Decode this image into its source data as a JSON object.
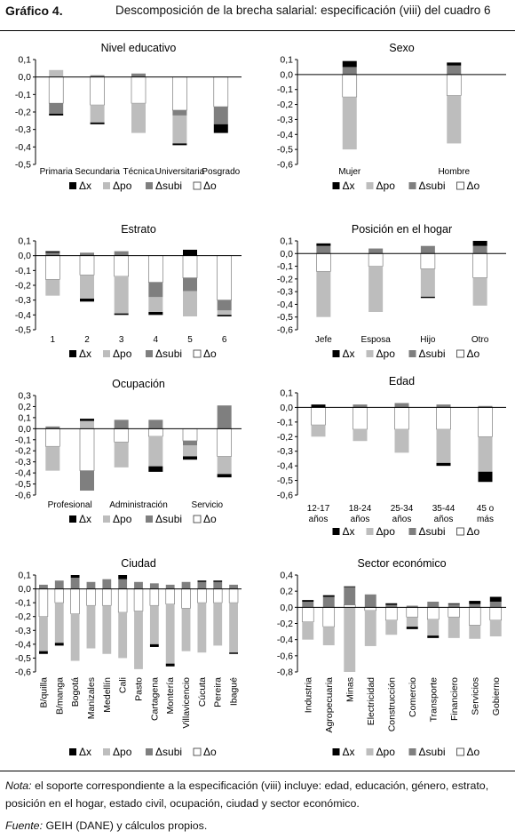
{
  "figure_label": "Gráfico 4.",
  "figure_title": "Descomposición de la brecha salarial: especificación (viii) del cuadro 6",
  "legend_labels": [
    "Δx",
    "Δpo",
    "Δsubi",
    "Δo"
  ],
  "colors": {
    "dx": "#000000",
    "dpo": "#bdbdbd",
    "dsubi": "#7f7f7f",
    "do": "#ffffff"
  },
  "note": {
    "lead": "Nota:",
    "text": " el soporte correspondiente a la especificación (viii) incluye: edad, educación, género, estrato, posición en el hogar, estado civil, ocupación, ciudad y sector económico."
  },
  "source": {
    "lead": "Fuente:",
    "text": " GEIH (DANE) y cálculos propios."
  },
  "chart_data": [
    {
      "type": "bar",
      "title": "Nivel educativo",
      "categories": [
        "Primaria",
        "Secundaria",
        "Técnica",
        "Universitaria",
        "Posgrado"
      ],
      "ylim": [
        -0.5,
        0.1
      ],
      "yticks": [
        -0.5,
        -0.4,
        -0.3,
        -0.2,
        -0.1,
        0.0,
        0.1
      ],
      "series": [
        {
          "name": "Δx",
          "values": [
            -0.01,
            -0.01,
            0.0,
            -0.01,
            -0.05
          ]
        },
        {
          "name": "Δpo",
          "values": [
            0.04,
            -0.1,
            -0.17,
            -0.16,
            -0.0
          ]
        },
        {
          "name": "Δsubi",
          "values": [
            -0.06,
            0.01,
            0.02,
            -0.03,
            -0.1
          ]
        },
        {
          "name": "Δo",
          "values": [
            -0.15,
            -0.16,
            -0.15,
            -0.19,
            -0.17
          ]
        }
      ]
    },
    {
      "type": "bar",
      "title": "Sexo",
      "categories": [
        "Mujer",
        "Hombre"
      ],
      "ylim": [
        -0.6,
        0.1
      ],
      "yticks": [
        -0.6,
        -0.5,
        -0.4,
        -0.3,
        -0.2,
        -0.1,
        0.0,
        0.1
      ],
      "series": [
        {
          "name": "Δx",
          "values": [
            0.04,
            0.02
          ]
        },
        {
          "name": "Δpo",
          "values": [
            -0.35,
            -0.32
          ]
        },
        {
          "name": "Δsubi",
          "values": [
            0.05,
            0.06
          ]
        },
        {
          "name": "Δo",
          "values": [
            -0.15,
            -0.14
          ]
        }
      ]
    },
    {
      "type": "bar",
      "title": "Estrato",
      "categories": [
        "1",
        "2",
        "3",
        "4",
        "5",
        "6"
      ],
      "ylim": [
        -0.5,
        0.1
      ],
      "yticks": [
        -0.5,
        -0.4,
        -0.3,
        -0.2,
        -0.1,
        0.0,
        0.1
      ],
      "series": [
        {
          "name": "Δx",
          "values": [
            0.01,
            -0.02,
            -0.01,
            -0.02,
            0.04,
            -0.01
          ]
        },
        {
          "name": "Δpo",
          "values": [
            -0.11,
            -0.16,
            -0.25,
            -0.1,
            -0.17,
            -0.03
          ]
        },
        {
          "name": "Δsubi",
          "values": [
            0.02,
            0.02,
            0.03,
            -0.1,
            -0.09,
            -0.07
          ]
        },
        {
          "name": "Δo",
          "values": [
            -0.16,
            -0.13,
            -0.14,
            -0.18,
            -0.15,
            -0.3
          ]
        }
      ]
    },
    {
      "type": "bar",
      "title": "Posición en el hogar",
      "categories": [
        "Jefe",
        "Esposa",
        "Hijo",
        "Otro"
      ],
      "ylim": [
        -0.6,
        0.1
      ],
      "yticks": [
        -0.6,
        -0.5,
        -0.4,
        -0.3,
        -0.2,
        -0.1,
        0.0,
        0.1
      ],
      "series": [
        {
          "name": "Δx",
          "values": [
            0.02,
            0.0,
            -0.01,
            0.04
          ]
        },
        {
          "name": "Δpo",
          "values": [
            -0.36,
            -0.36,
            -0.22,
            -0.22
          ]
        },
        {
          "name": "Δsubi",
          "values": [
            0.06,
            0.04,
            0.06,
            0.06
          ]
        },
        {
          "name": "Δo",
          "values": [
            -0.14,
            -0.1,
            -0.12,
            -0.19
          ]
        }
      ]
    },
    {
      "type": "bar",
      "title": "Ocupación",
      "categories": [
        "Profesional",
        "",
        "Administración",
        "",
        "Servicio",
        ""
      ],
      "ylim": [
        -0.6,
        0.3
      ],
      "yticks": [
        -0.6,
        -0.5,
        -0.4,
        -0.3,
        -0.2,
        -0.1,
        0.0,
        0.1,
        0.2,
        0.3
      ],
      "series": [
        {
          "name": "Δx",
          "values": [
            0.0,
            0.02,
            0.0,
            -0.05,
            -0.03,
            -0.03
          ]
        },
        {
          "name": "Δpo",
          "values": [
            -0.22,
            0.07,
            -0.23,
            -0.27,
            -0.1,
            -0.16
          ]
        },
        {
          "name": "Δsubi",
          "values": [
            0.02,
            -0.18,
            0.08,
            0.08,
            -0.04,
            0.21
          ]
        },
        {
          "name": "Δo",
          "values": [
            -0.16,
            -0.38,
            -0.12,
            -0.07,
            -0.11,
            -0.25
          ]
        }
      ]
    },
    {
      "type": "bar",
      "title": "Edad",
      "categories": [
        "12-17 años",
        "18-24 años",
        "25-34 años",
        "35-44 años",
        "45 o más"
      ],
      "ylim": [
        -0.6,
        0.1
      ],
      "yticks": [
        -0.6,
        -0.5,
        -0.4,
        -0.3,
        -0.2,
        -0.1,
        0.0,
        0.1
      ],
      "series": [
        {
          "name": "Δx",
          "values": [
            0.02,
            0.0,
            0.0,
            -0.02,
            -0.07
          ]
        },
        {
          "name": "Δpo",
          "values": [
            -0.08,
            -0.08,
            -0.16,
            -0.23,
            -0.24
          ]
        },
        {
          "name": "Δsubi",
          "values": [
            0.0,
            0.02,
            0.03,
            0.02,
            0.01
          ]
        },
        {
          "name": "Δo",
          "values": [
            -0.12,
            -0.15,
            -0.15,
            -0.15,
            -0.2
          ]
        }
      ]
    },
    {
      "type": "bar",
      "title": "Ciudad",
      "categories": [
        "B/quilla",
        "B/manga",
        "Bogotá",
        "Manizales",
        "Medellín",
        "Cali",
        "Pasto",
        "Cartagena",
        "Montería",
        "Villavicencio",
        "Cúcuta",
        "Pereira",
        "Ibagué"
      ],
      "ylim": [
        -0.6,
        0.1
      ],
      "yticks": [
        -0.6,
        -0.5,
        -0.4,
        -0.3,
        -0.2,
        -0.1,
        0.0,
        0.1
      ],
      "series": [
        {
          "name": "Δx",
          "values": [
            -0.02,
            -0.02,
            0.02,
            0.0,
            0.0,
            0.03,
            0.0,
            -0.02,
            -0.02,
            0.0,
            0.01,
            0.01,
            -0.01
          ]
        },
        {
          "name": "Δpo",
          "values": [
            -0.25,
            -0.29,
            -0.34,
            -0.31,
            -0.35,
            -0.33,
            -0.42,
            -0.28,
            -0.43,
            -0.31,
            -0.36,
            -0.31,
            -0.36
          ]
        },
        {
          "name": "Δsubi",
          "values": [
            0.03,
            0.06,
            0.08,
            0.05,
            0.07,
            0.07,
            0.05,
            0.04,
            0.03,
            0.05,
            0.05,
            0.05,
            0.03
          ]
        },
        {
          "name": "Δo",
          "values": [
            -0.2,
            -0.1,
            -0.18,
            -0.12,
            -0.12,
            -0.17,
            -0.16,
            -0.12,
            -0.11,
            -0.14,
            -0.1,
            -0.1,
            -0.1
          ]
        }
      ]
    },
    {
      "type": "bar",
      "title": "Sector económico",
      "categories": [
        "Industria",
        "Agropecuaria",
        "Minas",
        "Electricidad",
        "Construcción",
        "Comercio",
        "Transporte",
        "Financiero",
        "Servicios",
        "Gobierno"
      ],
      "ylim": [
        -0.8,
        0.4
      ],
      "yticks": [
        -0.8,
        -0.6,
        -0.4,
        -0.2,
        0.0,
        0.2,
        0.4
      ],
      "series": [
        {
          "name": "Δx",
          "values": [
            0.02,
            0.02,
            0.01,
            0.0,
            0.02,
            -0.03,
            -0.03,
            0.01,
            0.04,
            0.06
          ]
        },
        {
          "name": "Δpo",
          "values": [
            -0.22,
            -0.23,
            -0.8,
            -0.44,
            -0.18,
            -0.12,
            -0.2,
            -0.26,
            -0.17,
            -0.2
          ]
        },
        {
          "name": "Δsubi",
          "values": [
            0.07,
            0.13,
            0.22,
            0.16,
            0.03,
            0.02,
            0.07,
            0.04,
            0.04,
            0.07
          ]
        },
        {
          "name": "Δo",
          "values": [
            -0.18,
            -0.24,
            0.03,
            -0.04,
            -0.16,
            -0.12,
            -0.15,
            -0.12,
            -0.22,
            -0.16
          ]
        }
      ]
    }
  ]
}
